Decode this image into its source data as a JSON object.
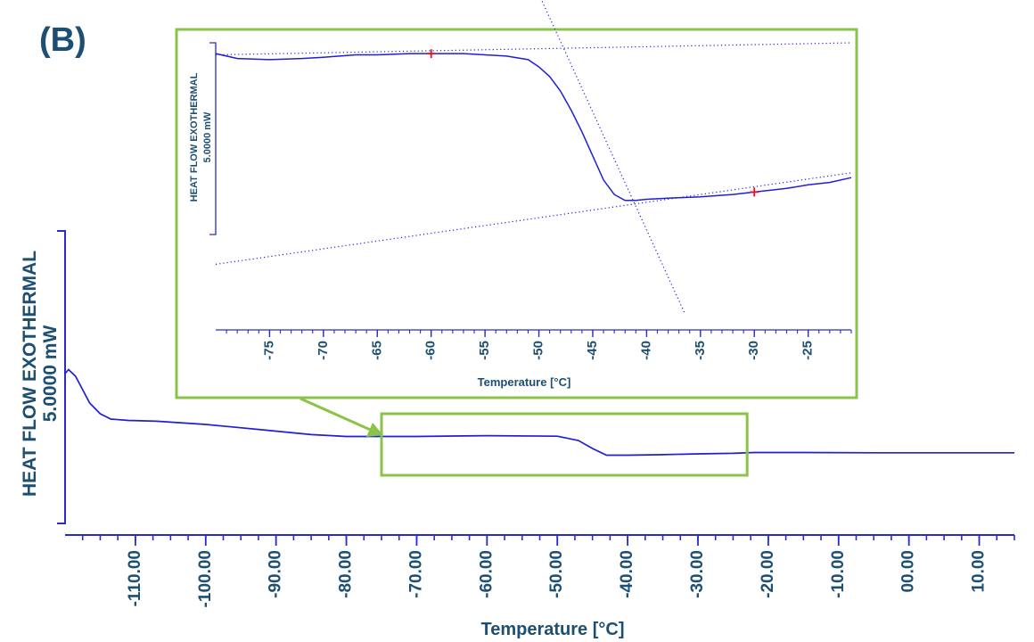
{
  "panel_label": "(B)",
  "colors": {
    "curve": "#1f1fd6",
    "axis": "#2a2ad0",
    "text": "#1d4f73",
    "highlight": "#8bc34a",
    "marker": "#e0102a"
  },
  "chart_data": [
    {
      "type": "line",
      "name": "main",
      "xlabel": "Temperature [°C]",
      "ylabel_line1": "HEAT FLOW EXOTHERMAL",
      "ylabel_line2": "5.0000 mW",
      "xlim": [
        -120,
        15
      ],
      "ylim": [
        0,
        10
      ],
      "x_ticks": [
        -110,
        -100,
        -90,
        -80,
        -70,
        -60,
        -50,
        -40,
        -30,
        -20,
        -10,
        0,
        10
      ],
      "x_tick_labels": [
        "-110.00",
        "-100.00",
        "-90.00",
        "-80.00",
        "-70.00",
        "-60.00",
        "-50.00",
        "-40.00",
        "-30.00",
        "-20.00",
        "-10.00",
        "00.00",
        "10.00"
      ],
      "series": [
        {
          "x": [
            -120,
            -119.5,
            -118.5,
            -117.5,
            -116.5,
            -115,
            -113.5,
            -111,
            -107,
            -100,
            -92,
            -85,
            -80,
            -75,
            -70,
            -60,
            -50,
            -47,
            -45,
            -43,
            -40,
            -35,
            -30,
            -25,
            -22,
            -15,
            -5,
            5,
            15
          ],
          "y": [
            5.2,
            5.35,
            5.1,
            4.6,
            4.1,
            3.7,
            3.5,
            3.45,
            3.42,
            3.3,
            3.1,
            2.92,
            2.85,
            2.85,
            2.85,
            2.88,
            2.86,
            2.7,
            2.4,
            2.15,
            2.15,
            2.17,
            2.2,
            2.22,
            2.25,
            2.25,
            2.24,
            2.24,
            2.24
          ]
        }
      ],
      "highlight_region": {
        "xmin": -75,
        "xmax": -23,
        "ymin": 1.4,
        "ymax": 3.7
      }
    },
    {
      "type": "line",
      "name": "inset",
      "xlabel": "Temperature [°C]",
      "ylabel_line1": "HEAT FLOW EXOTHERMAL",
      "ylabel_line2": "5.0000 mW",
      "xlim": [
        -80,
        -21
      ],
      "ylim": [
        0,
        10
      ],
      "x_ticks": [
        -75,
        -70,
        -65,
        -60,
        -55,
        -50,
        -45,
        -40,
        -35,
        -30,
        -25
      ],
      "x_tick_labels": [
        "-75",
        "-70",
        "-65",
        "-60",
        "-55",
        "-50",
        "-45",
        "-40",
        "-35",
        "-30",
        "-25"
      ],
      "series": [
        {
          "x": [
            -80,
            -78,
            -75,
            -72,
            -70,
            -67,
            -65,
            -62,
            -60,
            -57,
            -55,
            -53,
            -51,
            -50,
            -49,
            -48,
            -47,
            -46,
            -45,
            -44,
            -43,
            -42,
            -41,
            -40,
            -38,
            -35,
            -32,
            -30,
            -27,
            -25,
            -23,
            -21
          ],
          "y": [
            9.55,
            9.35,
            9.3,
            9.35,
            9.4,
            9.5,
            9.5,
            9.55,
            9.55,
            9.55,
            9.5,
            9.45,
            9.3,
            9.0,
            8.6,
            8.0,
            7.2,
            6.3,
            5.3,
            4.3,
            3.7,
            3.45,
            3.45,
            3.5,
            3.55,
            3.6,
            3.7,
            3.8,
            3.95,
            4.1,
            4.2,
            4.4
          ]
        }
      ],
      "baseline_before": {
        "x": [
          -80,
          -21
        ],
        "y": [
          9.5,
          10.0
        ]
      },
      "baseline_after": {
        "x": [
          -80,
          -21
        ],
        "y": [
          0.8,
          4.6
        ]
      },
      "tangent": {
        "x": [
          -51,
          -36.5
        ],
        "y": [
          13.0,
          -1.2
        ]
      },
      "markers": [
        {
          "x": -60,
          "y": 9.55
        },
        {
          "x": -30,
          "y": 3.8
        }
      ]
    }
  ]
}
